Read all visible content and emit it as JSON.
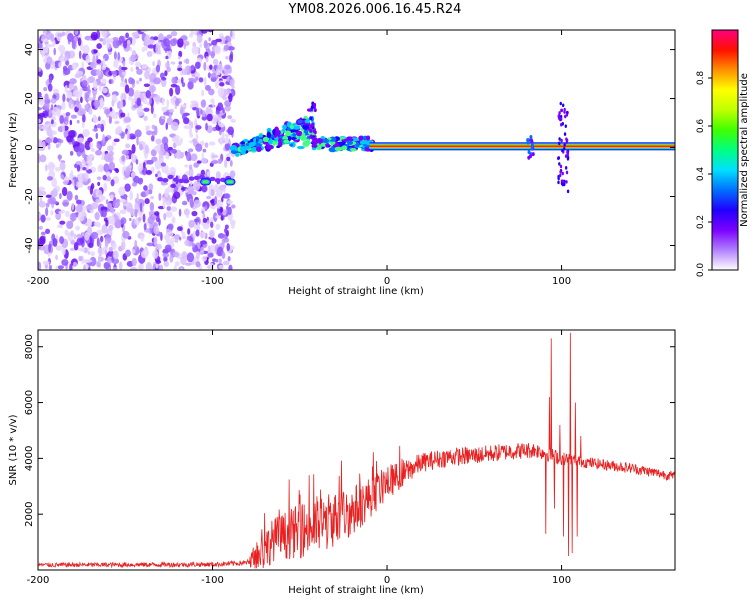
{
  "title": "YM08.2026.006.16.45.R24",
  "chart_data": [
    {
      "type": "heatmap",
      "title": "YM08.2026.006.16.45.R24",
      "xlabel": "Height of straight line (km)",
      "ylabel": "Frequency (Hz)",
      "xlim": [
        -200,
        165
      ],
      "ylim": [
        -50,
        48
      ],
      "xticks": [
        -200,
        -100,
        0,
        100
      ],
      "yticks": [
        -40,
        -20,
        0,
        20,
        40
      ],
      "colorbar": {
        "label": "Normalized spectral amplitude",
        "range": [
          0,
          1
        ],
        "ticks": [
          "0.0",
          "0.2",
          "0.4",
          "0.6",
          "0.8"
        ],
        "colors": [
          "#ffffff",
          "#b080ff",
          "#7b00ff",
          "#2000ff",
          "#0070ff",
          "#00e0ff",
          "#00ff80",
          "#40ff00",
          "#c0ff00",
          "#ffff00",
          "#ff9000",
          "#ff1000",
          "#ff0080"
        ]
      },
      "features": {
        "noise_region_x": [
          -200,
          -88
        ],
        "carrier_x": [
          -10,
          165
        ],
        "carrier_freq_hz": 0.5,
        "ramp": {
          "x": [
            -88,
            -42
          ],
          "freq_hz": [
            -2,
            14
          ]
        },
        "spike_cluster_x": [
          80,
          104
        ]
      }
    },
    {
      "type": "line",
      "xlabel": "Height of straight line (km)",
      "ylabel": "SNR (10 * v/v)",
      "xlim": [
        -200,
        165
      ],
      "ylim": [
        0,
        8600
      ],
      "xticks": [
        -200,
        -100,
        0,
        100
      ],
      "yticks": [
        2000,
        4000,
        6000,
        8000
      ],
      "series": [
        {
          "name": "SNR",
          "color": "#e82020",
          "envelope": [
            {
              "x": -200,
              "y": 180
            },
            {
              "x": -150,
              "y": 190
            },
            {
              "x": -100,
              "y": 200
            },
            {
              "x": -80,
              "y": 260
            },
            {
              "x": -72,
              "y": 600
            },
            {
              "x": -65,
              "y": 1100
            },
            {
              "x": -50,
              "y": 1400
            },
            {
              "x": -35,
              "y": 1700
            },
            {
              "x": -20,
              "y": 2100
            },
            {
              "x": -10,
              "y": 2600
            },
            {
              "x": 0,
              "y": 3100
            },
            {
              "x": 10,
              "y": 3500
            },
            {
              "x": 20,
              "y": 3850
            },
            {
              "x": 35,
              "y": 4050
            },
            {
              "x": 50,
              "y": 4100
            },
            {
              "x": 70,
              "y": 4250
            },
            {
              "x": 85,
              "y": 4300
            },
            {
              "x": 100,
              "y": 4000
            },
            {
              "x": 115,
              "y": 3850
            },
            {
              "x": 140,
              "y": 3650
            },
            {
              "x": 165,
              "y": 3350
            }
          ],
          "noise_amplitude": [
            {
              "x": -200,
              "y": 80
            },
            {
              "x": -80,
              "y": 90
            },
            {
              "x": -72,
              "y": 700
            },
            {
              "x": -40,
              "y": 1100
            },
            {
              "x": -20,
              "y": 900
            },
            {
              "x": 0,
              "y": 600
            },
            {
              "x": 20,
              "y": 350
            },
            {
              "x": 80,
              "y": 300
            },
            {
              "x": 115,
              "y": 200
            },
            {
              "x": 165,
              "y": 180
            }
          ],
          "spikes": [
            {
              "x": 91,
              "y": 1300
            },
            {
              "x": 93,
              "y": 6200
            },
            {
              "x": 94,
              "y": 8300
            },
            {
              "x": 96,
              "y": 2200
            },
            {
              "x": 99,
              "y": 5200
            },
            {
              "x": 101,
              "y": 1200
            },
            {
              "x": 104,
              "y": 500
            },
            {
              "x": 105,
              "y": 8500
            },
            {
              "x": 106,
              "y": 600
            },
            {
              "x": 108,
              "y": 6000
            },
            {
              "x": 109,
              "y": 1200
            },
            {
              "x": 111,
              "y": 4800
            }
          ]
        }
      ]
    }
  ]
}
